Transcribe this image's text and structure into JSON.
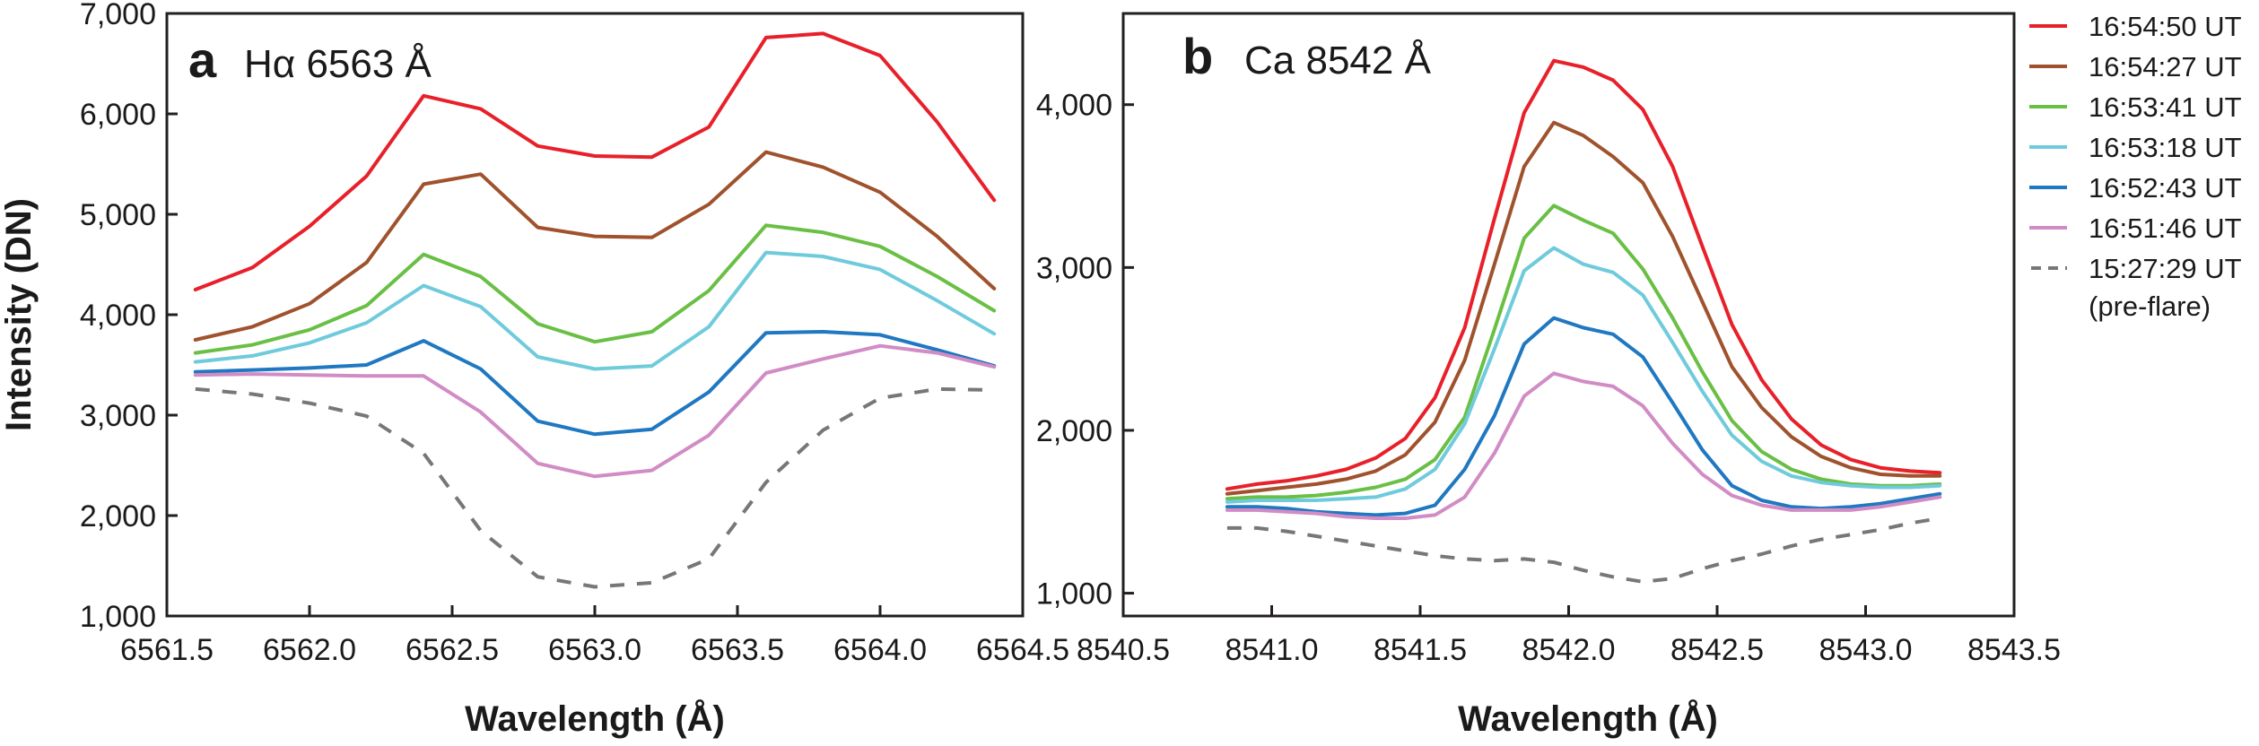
{
  "figure": {
    "ylabel": "Intensity (DN)",
    "xlabel": "Wavelength (Å)"
  },
  "legend": {
    "entries": [
      {
        "label": "16:54:50 UT",
        "color": "#e8202a",
        "dashed": false
      },
      {
        "label": "16:54:27 UT",
        "color": "#a0522d",
        "dashed": false
      },
      {
        "label": "16:53:41 UT",
        "color": "#6abf45",
        "dashed": false
      },
      {
        "label": "16:53:18 UT",
        "color": "#6fcbdc",
        "dashed": false
      },
      {
        "label": "16:52:43 UT",
        "color": "#1f78c1",
        "dashed": false
      },
      {
        "label": "16:51:46 UT",
        "color": "#d18cc5",
        "dashed": false
      },
      {
        "label": "15:27:29 UT",
        "label2": "(pre-flare)",
        "color": "#777777",
        "dashed": true
      }
    ]
  },
  "chart_data": [
    {
      "type": "line",
      "panel": "a",
      "title": "Hα 6563 Å",
      "xlabel": "Wavelength (Å)",
      "ylabel": "Intensity (DN)",
      "xlim": [
        6561.5,
        6564.5
      ],
      "ylim": [
        1000,
        7000
      ],
      "xticks": [
        "6561.5",
        "6562.0",
        "6562.5",
        "6563.0",
        "6563.5",
        "6564.0",
        "6564.5"
      ],
      "yticks": [
        "1,000",
        "2,000",
        "3,000",
        "4,000",
        "5,000",
        "6,000",
        "7,000"
      ],
      "xtick_values": [
        6561.5,
        6562.0,
        6562.5,
        6563.0,
        6563.5,
        6564.0,
        6564.5
      ],
      "ytick_values": [
        1000,
        2000,
        3000,
        4000,
        5000,
        6000,
        7000
      ],
      "x": [
        6561.6,
        6561.8,
        6562.0,
        6562.2,
        6562.4,
        6562.6,
        6562.8,
        6563.0,
        6563.2,
        6563.4,
        6563.6,
        6563.8,
        6564.0,
        6564.2,
        6564.4
      ],
      "series": [
        {
          "name": "16:54:50 UT",
          "values": [
            4250,
            4470,
            4880,
            5380,
            6180,
            6050,
            5680,
            5580,
            5570,
            5870,
            6760,
            6800,
            6580,
            5920,
            5140
          ]
        },
        {
          "name": "16:54:27 UT",
          "values": [
            3750,
            3880,
            4110,
            4520,
            5300,
            5400,
            4870,
            4780,
            4770,
            5100,
            5620,
            5470,
            5220,
            4780,
            4260
          ]
        },
        {
          "name": "16:53:41 UT",
          "values": [
            3620,
            3700,
            3850,
            4090,
            4600,
            4380,
            3910,
            3730,
            3830,
            4240,
            4890,
            4820,
            4680,
            4380,
            4040
          ]
        },
        {
          "name": "16:53:18 UT",
          "values": [
            3530,
            3590,
            3720,
            3920,
            4290,
            4080,
            3580,
            3460,
            3490,
            3880,
            4620,
            4580,
            4450,
            4140,
            3810
          ]
        },
        {
          "name": "16:52:43 UT",
          "values": [
            3430,
            3450,
            3470,
            3500,
            3740,
            3460,
            2940,
            2810,
            2860,
            3230,
            3820,
            3830,
            3800,
            3650,
            3490
          ]
        },
        {
          "name": "16:51:46 UT",
          "values": [
            3400,
            3410,
            3400,
            3390,
            3390,
            3030,
            2520,
            2390,
            2450,
            2800,
            3420,
            3560,
            3690,
            3620,
            3480
          ]
        },
        {
          "name": "15:27:29 UT (pre-flare)",
          "values": [
            3260,
            3210,
            3120,
            2990,
            2620,
            1850,
            1390,
            1290,
            1330,
            1570,
            2330,
            2850,
            3170,
            3260,
            3250
          ]
        }
      ]
    },
    {
      "type": "line",
      "panel": "b",
      "title": "Ca 8542 Å",
      "xlabel": "Wavelength (Å)",
      "ylabel": "",
      "xlim": [
        8540.5,
        8543.5
      ],
      "ylim": [
        860,
        4560
      ],
      "xticks": [
        "8540.5",
        "8541.0",
        "8541.5",
        "8542.0",
        "8542.5",
        "8543.0",
        "8543.5"
      ],
      "yticks": [
        "1,000",
        "2,000",
        "3,000",
        "4,000"
      ],
      "xtick_values": [
        8540.5,
        8541.0,
        8541.5,
        8542.0,
        8542.5,
        8543.0,
        8543.5
      ],
      "ytick_values": [
        1000,
        2000,
        3000,
        4000
      ],
      "x": [
        8540.85,
        8540.95,
        8541.05,
        8541.15,
        8541.25,
        8541.35,
        8541.45,
        8541.55,
        8541.65,
        8541.75,
        8541.85,
        8541.95,
        8542.05,
        8542.15,
        8542.25,
        8542.35,
        8542.45,
        8542.55,
        8542.65,
        8542.75,
        8542.85,
        8542.95,
        8543.05,
        8543.15,
        8543.25
      ],
      "series": [
        {
          "name": "16:54:50 UT",
          "values": [
            1640,
            1670,
            1690,
            1720,
            1760,
            1830,
            1950,
            2200,
            2630,
            3300,
            3950,
            4270,
            4230,
            4150,
            3970,
            3620,
            3130,
            2650,
            2310,
            2070,
            1910,
            1820,
            1770,
            1750,
            1740
          ]
        },
        {
          "name": "16:54:27 UT",
          "values": [
            1610,
            1630,
            1650,
            1670,
            1700,
            1750,
            1850,
            2050,
            2430,
            3020,
            3620,
            3890,
            3810,
            3680,
            3520,
            3190,
            2790,
            2390,
            2140,
            1960,
            1840,
            1770,
            1730,
            1720,
            1720
          ]
        },
        {
          "name": "16:53:41 UT",
          "values": [
            1580,
            1590,
            1590,
            1600,
            1620,
            1650,
            1700,
            1820,
            2080,
            2620,
            3180,
            3380,
            3290,
            3210,
            2990,
            2690,
            2360,
            2060,
            1870,
            1760,
            1700,
            1670,
            1660,
            1660,
            1670
          ]
        },
        {
          "name": "16:53:18 UT",
          "values": [
            1560,
            1570,
            1570,
            1570,
            1580,
            1590,
            1640,
            1760,
            2040,
            2500,
            2980,
            3120,
            3020,
            2970,
            2830,
            2540,
            2240,
            1970,
            1810,
            1720,
            1680,
            1660,
            1650,
            1650,
            1660
          ]
        },
        {
          "name": "16:52:43 UT",
          "values": [
            1530,
            1530,
            1520,
            1500,
            1490,
            1480,
            1490,
            1540,
            1760,
            2090,
            2530,
            2690,
            2630,
            2590,
            2450,
            2170,
            1880,
            1660,
            1570,
            1530,
            1520,
            1530,
            1550,
            1580,
            1610
          ]
        },
        {
          "name": "16:51:46 UT",
          "values": [
            1510,
            1510,
            1500,
            1490,
            1470,
            1460,
            1460,
            1480,
            1590,
            1860,
            2210,
            2350,
            2300,
            2270,
            2150,
            1920,
            1730,
            1600,
            1540,
            1510,
            1510,
            1510,
            1530,
            1560,
            1590
          ]
        },
        {
          "name": "15:27:29 UT (pre-flare)",
          "values": [
            1400,
            1400,
            1380,
            1350,
            1320,
            1290,
            1260,
            1230,
            1210,
            1200,
            1210,
            1190,
            1140,
            1100,
            1070,
            1090,
            1150,
            1200,
            1240,
            1290,
            1330,
            1360,
            1390,
            1430,
            1460
          ]
        }
      ]
    }
  ]
}
